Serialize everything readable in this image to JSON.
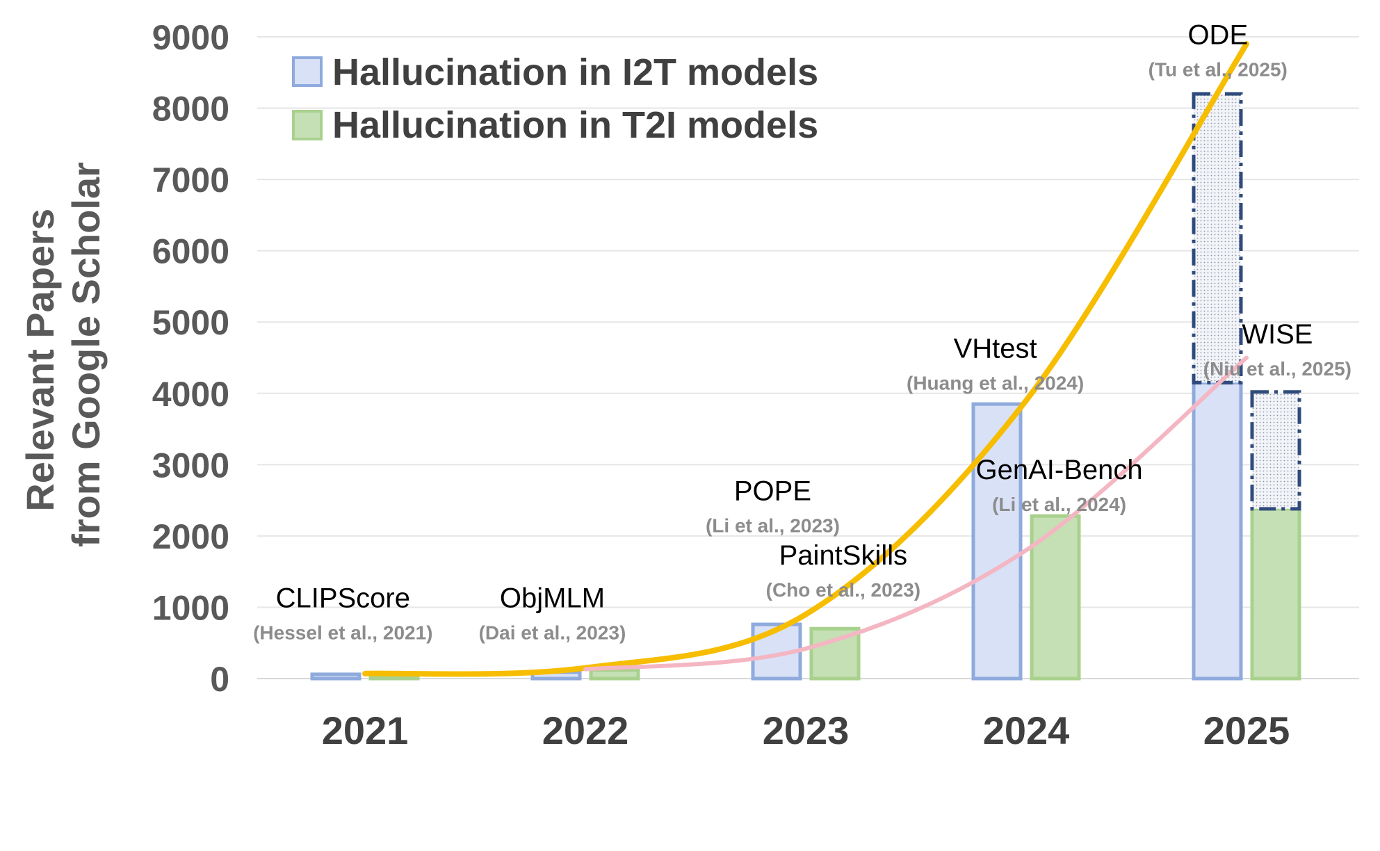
{
  "chart_data": {
    "type": "bar",
    "categories": [
      "2021",
      "2022",
      "2023",
      "2024",
      "2025"
    ],
    "ylabel_lines": [
      "Relevant Papers",
      "from Google Scholar"
    ],
    "ylim": [
      0,
      9000
    ],
    "yticks": [
      "0",
      "1000",
      "2000",
      "3000",
      "4000",
      "5000",
      "6000",
      "7000",
      "8000",
      "9000"
    ],
    "grid": true,
    "legend_position": "top-left",
    "series": [
      {
        "name": "Hallucination in I2T models",
        "values": [
          60,
          90,
          760,
          3850,
          4150
        ],
        "projected_total": [
          null,
          null,
          null,
          null,
          8200
        ],
        "fill": "#d9e1f7",
        "stroke": "#8faadc"
      },
      {
        "name": "Hallucination in T2I models",
        "values": [
          20,
          120,
          700,
          2280,
          2380
        ],
        "projected_total": [
          null,
          null,
          null,
          null,
          4020
        ],
        "fill": "#c5e0b4",
        "stroke": "#a9d18e"
      }
    ],
    "trend_lines": [
      {
        "series": "Hallucination in I2T models",
        "color": "#f7bd00",
        "points": [
          [
            2021,
            70
          ],
          [
            2022,
            150
          ],
          [
            2023,
            900
          ],
          [
            2024,
            3900
          ],
          [
            2025,
            8900
          ]
        ]
      },
      {
        "series": "Hallucination in T2I models",
        "color": "#f4b6c2",
        "points": [
          [
            2022,
            130
          ],
          [
            2023,
            420
          ],
          [
            2024,
            1800
          ],
          [
            2025,
            4500
          ]
        ]
      }
    ],
    "annotations": [
      {
        "name": "CLIPScore",
        "cite": "(Hessel et al., 2021)",
        "x": 2020.9,
        "y": 1000
      },
      {
        "name": "ObjMLM",
        "cite": "(Dai et al., 2023)",
        "x": 2021.85,
        "y": 1000
      },
      {
        "name": "POPE",
        "cite": "(Li et al., 2023)",
        "x": 2022.85,
        "y": 2500
      },
      {
        "name": "PaintSkills",
        "cite": "(Cho et al., 2023)",
        "x": 2023.17,
        "y": 1600
      },
      {
        "name": "VHtest",
        "cite": "(Huang et al., 2024)",
        "x": 2023.86,
        "y": 4500
      },
      {
        "name": "GenAI-Bench",
        "cite": "(Li et al., 2024)",
        "x": 2024.15,
        "y": 2800
      },
      {
        "name": "ODE",
        "cite": "(Tu et al., 2025)",
        "x": 2024.87,
        "y": 8900
      },
      {
        "name": "WISE",
        "cite": "(Niu et al., 2025)",
        "x": 2025.14,
        "y": 4700
      }
    ]
  }
}
